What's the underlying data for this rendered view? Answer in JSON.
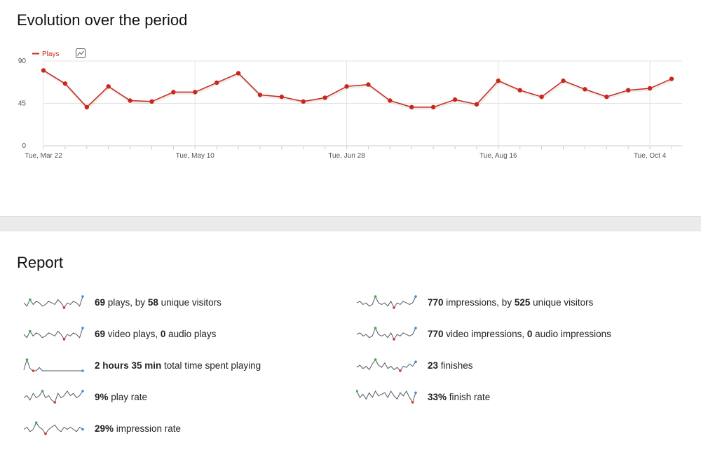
{
  "evolution": {
    "title": "Evolution over the period"
  },
  "report": {
    "title": "Report"
  },
  "chart_data": {
    "type": "line",
    "legend": {
      "label": "Plays",
      "position": "top-left"
    },
    "color": "#c9271a",
    "icon": "chart-type-icon",
    "ylim": [
      0,
      90
    ],
    "yticks": [
      "90",
      "45",
      "0"
    ],
    "xtick_labels": [
      "Tue, Mar 22",
      "Tue, May 10",
      "Tue, Jun 28",
      "Tue, Aug 16",
      "Tue, Oct 4"
    ],
    "series": [
      {
        "name": "Plays",
        "values": [
          80,
          66,
          41,
          63,
          48,
          47,
          57,
          57,
          67,
          77,
          54,
          52,
          47,
          51,
          63,
          65,
          48,
          41,
          41,
          49,
          44,
          69,
          59,
          52,
          69,
          60,
          52,
          59,
          61,
          71
        ]
      }
    ]
  },
  "metrics": [
    {
      "v1": "69",
      "t1": " plays, by ",
      "v2": "58",
      "t2": " unique visitors",
      "spark": [
        5,
        3,
        7,
        4,
        6,
        5,
        3,
        4,
        6,
        5,
        4,
        7,
        5,
        2,
        5,
        4,
        6,
        5,
        3,
        9
      ]
    },
    {
      "v1": "770",
      "t1": " impressions, by ",
      "v2": "525",
      "t2": " unique visitors",
      "spark": [
        5,
        6,
        4,
        5,
        3,
        4,
        9,
        5,
        4,
        5,
        3,
        6,
        2,
        5,
        4,
        6,
        5,
        4,
        5,
        9
      ]
    },
    {
      "v1": "69",
      "t1": " video plays, ",
      "v2": "0",
      "t2": " audio plays",
      "spark": [
        5,
        3,
        7,
        4,
        6,
        5,
        3,
        4,
        6,
        5,
        4,
        7,
        5,
        2,
        5,
        4,
        6,
        5,
        3,
        9
      ]
    },
    {
      "v1": "770",
      "t1": " video impressions, ",
      "v2": "0",
      "t2": " audio impressions",
      "spark": [
        5,
        6,
        4,
        5,
        3,
        4,
        9,
        5,
        4,
        5,
        3,
        6,
        2,
        5,
        4,
        6,
        5,
        4,
        5,
        9
      ]
    },
    {
      "v1": "2 hours 35 min",
      "t1": " total time spent playing",
      "v2": "",
      "t2": "",
      "spark": [
        2,
        15,
        4,
        1,
        1,
        5,
        1,
        1,
        1,
        1,
        1,
        1,
        1,
        1,
        1,
        1,
        1,
        1,
        1,
        1
      ]
    },
    {
      "v1": "23",
      "t1": " finishes",
      "v2": "",
      "t2": "",
      "spark": [
        5,
        7,
        4,
        6,
        3,
        8,
        12,
        7,
        5,
        9,
        4,
        6,
        3,
        5,
        2,
        6,
        5,
        8,
        6,
        10
      ]
    },
    {
      "v1": "9%",
      "t1": " play rate",
      "v2": "",
      "t2": "",
      "spark": [
        4,
        5,
        3,
        6,
        4,
        5,
        7,
        4,
        5,
        3,
        2,
        6,
        4,
        5,
        7,
        5,
        6,
        4,
        5,
        7
      ]
    },
    {
      "v1": "33%",
      "t1": " finish rate",
      "v2": "",
      "t2": "",
      "spark": [
        8,
        4,
        6,
        3,
        7,
        4,
        8,
        5,
        6,
        7,
        4,
        8,
        5,
        3,
        7,
        5,
        8,
        4,
        1,
        7
      ]
    },
    {
      "v1": "29%",
      "t1": " impression rate",
      "v2": "",
      "t2": "",
      "spark": [
        5,
        6,
        4,
        5,
        8,
        6,
        5,
        3,
        5,
        6,
        7,
        5,
        4,
        6,
        5,
        6,
        5,
        4,
        6,
        5
      ]
    }
  ]
}
